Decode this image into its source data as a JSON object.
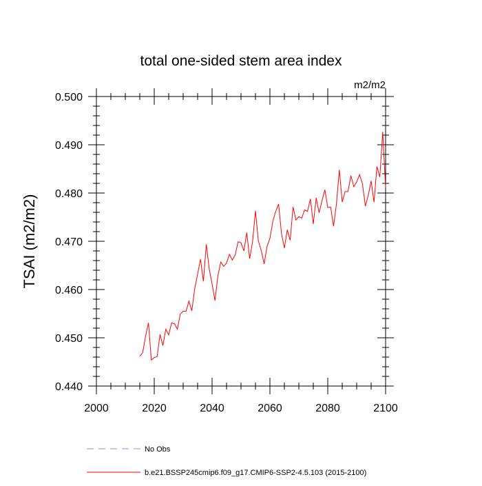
{
  "chart_data": {
    "type": "line",
    "title": "total one-sided stem area index",
    "units_label": "m2/m2",
    "ylabel": "TSAI  (m2/m2)",
    "xlabel": "",
    "xlim": [
      2000,
      2100
    ],
    "ylim": [
      0.44,
      0.5
    ],
    "x_ticks": [
      2000,
      2020,
      2040,
      2060,
      2080,
      2100
    ],
    "x_tick_labels": [
      "2000",
      "2020",
      "2040",
      "2060",
      "2080",
      "2100"
    ],
    "y_ticks": [
      0.44,
      0.45,
      0.46,
      0.47,
      0.48,
      0.49,
      0.5
    ],
    "y_tick_labels": [
      "0.440",
      "0.450",
      "0.460",
      "0.470",
      "0.480",
      "0.490",
      "0.500"
    ],
    "grid": false,
    "legend_position": "bottom-left, below plot",
    "series": [
      {
        "name": "b.e21.BSSP245cmip6.f09_g17.CMIP6-SSP2-4.5.103 (2015-2100)",
        "color": "#ff0000",
        "style": "solid",
        "x": [
          2015,
          2016,
          2017,
          2018,
          2019,
          2020,
          2021,
          2022,
          2023,
          2024,
          2025,
          2026,
          2027,
          2028,
          2029,
          2030,
          2031,
          2032,
          2033,
          2034,
          2035,
          2036,
          2037,
          2038,
          2039,
          2040,
          2041,
          2042,
          2043,
          2044,
          2045,
          2046,
          2047,
          2048,
          2049,
          2050,
          2051,
          2052,
          2053,
          2054,
          2055,
          2056,
          2057,
          2058,
          2059,
          2060,
          2061,
          2062,
          2063,
          2064,
          2065,
          2066,
          2067,
          2068,
          2069,
          2070,
          2071,
          2072,
          2073,
          2074,
          2075,
          2076,
          2077,
          2078,
          2079,
          2080,
          2081,
          2082,
          2083,
          2084,
          2085,
          2086,
          2087,
          2088,
          2089,
          2090,
          2091,
          2092,
          2093,
          2094,
          2095,
          2096,
          2097,
          2098,
          2099,
          2100
        ],
        "y": [
          0.4462,
          0.4469,
          0.4503,
          0.4531,
          0.4454,
          0.4459,
          0.4461,
          0.4507,
          0.4484,
          0.4518,
          0.4506,
          0.4531,
          0.4529,
          0.4518,
          0.4549,
          0.4555,
          0.4555,
          0.4576,
          0.4556,
          0.4602,
          0.4632,
          0.4663,
          0.4617,
          0.4694,
          0.4643,
          0.4612,
          0.4577,
          0.4628,
          0.4657,
          0.4648,
          0.4655,
          0.4673,
          0.4661,
          0.4672,
          0.4699,
          0.4697,
          0.468,
          0.4718,
          0.4664,
          0.4699,
          0.4763,
          0.4701,
          0.4681,
          0.4653,
          0.4689,
          0.4706,
          0.4741,
          0.4762,
          0.4777,
          0.4716,
          0.4686,
          0.4724,
          0.4702,
          0.4771,
          0.4744,
          0.4751,
          0.4748,
          0.4765,
          0.4762,
          0.4788,
          0.4736,
          0.479,
          0.4759,
          0.4784,
          0.4807,
          0.477,
          0.4771,
          0.4731,
          0.4777,
          0.4848,
          0.4781,
          0.4803,
          0.4803,
          0.4836,
          0.4813,
          0.4823,
          0.4838,
          0.4819,
          0.4773,
          0.4795,
          0.4825,
          0.4781,
          0.4855,
          0.4833,
          0.4927,
          0.4812
        ]
      },
      {
        "name": "No Obs",
        "color": "#8a8aff",
        "style": "dashed",
        "x": [],
        "y": []
      }
    ]
  }
}
